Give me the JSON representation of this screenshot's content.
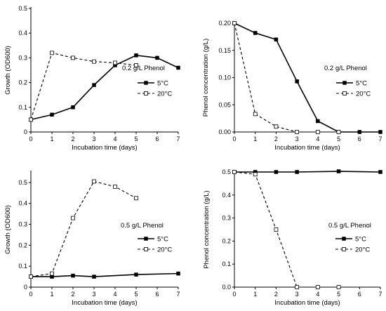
{
  "chart_data": [
    {
      "type": "line",
      "xlabel": "Incubation time (days)",
      "ylabel": "Growth (OD600)",
      "xlim": [
        0,
        7
      ],
      "ylim": [
        0,
        0.5
      ],
      "xticks": [
        "0",
        "1",
        "2",
        "3",
        "4",
        "5",
        "6",
        "7"
      ],
      "yticks": [
        "0",
        "0.1",
        "0.2",
        "0.3",
        "0.4",
        "0.5"
      ],
      "annotation": "0.2 g/L Phenol",
      "legend_position": "right",
      "series": [
        {
          "name": "5°C",
          "style": "solid",
          "marker": "filled-square",
          "x": [
            0,
            1,
            2,
            3,
            4,
            5,
            6,
            7
          ],
          "y": [
            0.05,
            0.07,
            0.1,
            0.19,
            0.27,
            0.31,
            0.3,
            0.26
          ]
        },
        {
          "name": "20°C",
          "style": "dashed",
          "marker": "open-square",
          "x": [
            0,
            1,
            2,
            3,
            4,
            5
          ],
          "y": [
            0.05,
            0.32,
            0.3,
            0.285,
            0.28,
            0.27
          ]
        }
      ]
    },
    {
      "type": "line",
      "xlabel": "Incubation time (days)",
      "ylabel": "Phenol concentration  (g/L)",
      "xlim": [
        0,
        7
      ],
      "ylim": [
        0,
        0.2
      ],
      "xticks": [
        "0",
        "1",
        "2",
        "3",
        "4",
        "5",
        "6",
        "7"
      ],
      "yticks": [
        "0.00",
        "0.05",
        "0.10",
        "0.15",
        "0.20"
      ],
      "annotation": "0.2 g/L Phenol",
      "legend_position": "right",
      "series": [
        {
          "name": "5°C",
          "style": "solid",
          "marker": "filled-square",
          "x": [
            0,
            1,
            2,
            3,
            4,
            5,
            6,
            7
          ],
          "y": [
            0.2,
            0.182,
            0.17,
            0.093,
            0.02,
            0,
            0,
            0
          ]
        },
        {
          "name": "20°C",
          "style": "dashed",
          "marker": "open-square",
          "x": [
            0,
            1,
            2,
            3,
            4,
            5
          ],
          "y": [
            0.2,
            0.033,
            0.01,
            0,
            0,
            0
          ]
        }
      ]
    },
    {
      "type": "line",
      "xlabel": "Incubation time (days)",
      "ylabel": "Growth (OD600)",
      "xlim": [
        0,
        7
      ],
      "ylim": [
        0,
        0.55
      ],
      "xticks": [
        "0",
        "1",
        "2",
        "3",
        "4",
        "5",
        "6",
        "7"
      ],
      "yticks": [
        "0",
        "0.1",
        "0.2",
        "0.3",
        "0.4",
        "0.5"
      ],
      "annotation": "0.5 g/L Phenol",
      "legend_position": "bottom-right",
      "series": [
        {
          "name": "5°C",
          "style": "solid",
          "marker": "filled-square",
          "x": [
            0,
            1,
            2,
            3,
            5,
            7
          ],
          "y": [
            0.05,
            0.05,
            0.055,
            0.05,
            0.06,
            0.065
          ]
        },
        {
          "name": "20°C",
          "style": "dashed",
          "marker": "open-square",
          "x": [
            0,
            1,
            2,
            3,
            4,
            5
          ],
          "y": [
            0.05,
            0.065,
            0.33,
            0.505,
            0.48,
            0.425
          ]
        }
      ]
    },
    {
      "type": "line",
      "xlabel": "Incubation time (days)",
      "ylabel": "Phenol concentration  (g/L)",
      "xlim": [
        0,
        7
      ],
      "ylim": [
        0,
        0.5
      ],
      "xticks": [
        "0",
        "1",
        "2",
        "3",
        "4",
        "5",
        "6",
        "7"
      ],
      "yticks": [
        "0.0",
        "0.1",
        "0.2",
        "0.3",
        "0.4",
        "0.5"
      ],
      "annotation": "0.5 g/L Phenol",
      "legend_position": "bottom-right",
      "series": [
        {
          "name": "5°C",
          "style": "solid",
          "marker": "filled-square",
          "x": [
            0,
            1,
            2,
            3,
            5,
            7
          ],
          "y": [
            0.5,
            0.5,
            0.5,
            0.5,
            0.503,
            0.5
          ]
        },
        {
          "name": "20°C",
          "style": "dashed",
          "marker": "open-square",
          "x": [
            0,
            1,
            2,
            3,
            4,
            5
          ],
          "y": [
            0.5,
            0.49,
            0.25,
            0,
            0,
            0
          ]
        }
      ]
    }
  ]
}
